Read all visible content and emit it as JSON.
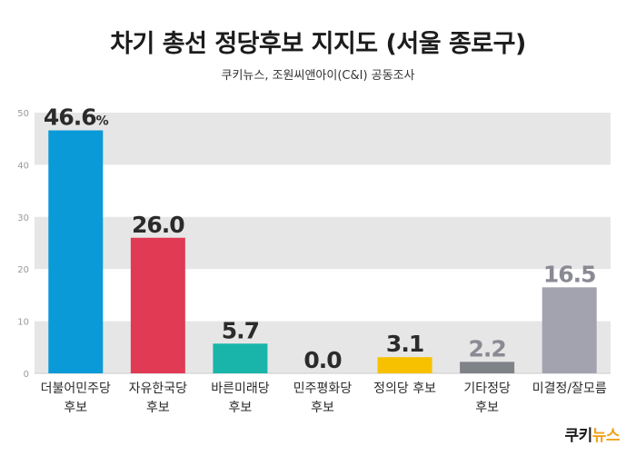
{
  "header": {
    "title": "차기 총선 정당후보 지지도 (서울 종로구)",
    "subtitle": "쿠키뉴스, 조원씨앤아이(C&I) 공동조사"
  },
  "logo": {
    "part1": "쿠키",
    "part2": "뉴스"
  },
  "colors": {
    "band": "#e6e6e6",
    "axis_text": "#999999",
    "value_text": "#2b2b2b",
    "muted_value_text": "#8a8a94"
  },
  "chart_data": {
    "type": "bar",
    "categories": [
      "더불어민주당\n후보",
      "자유한국당\n후보",
      "바른미래당\n후보",
      "민주평화당\n후보",
      "정의당 후보",
      "기타정당\n후보",
      "미결정/잘모름"
    ],
    "values": [
      46.6,
      26.0,
      5.7,
      0.0,
      3.1,
      2.2,
      16.5
    ],
    "value_labels": [
      "46.6",
      "26.0",
      "5.7",
      "0.0",
      "3.1",
      "2.2",
      "16.5"
    ],
    "unit_label": "%",
    "bar_colors": [
      "#0a9ad8",
      "#e03a55",
      "#1ab5aa",
      "#0b4da2",
      "#f7c100",
      "#7f8287",
      "#a3a3b0"
    ],
    "ylim": [
      0,
      50
    ],
    "yticks": [
      0,
      10,
      20,
      30,
      40,
      50
    ],
    "grid": "alternating horizontal bands",
    "legend": "none"
  }
}
